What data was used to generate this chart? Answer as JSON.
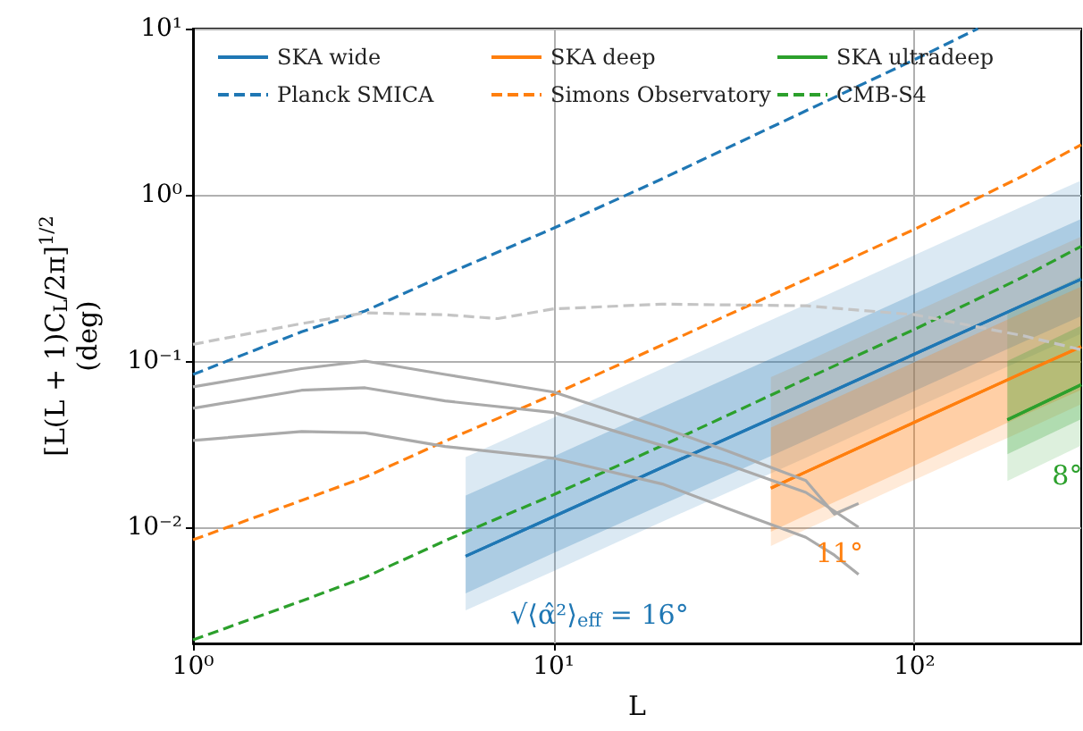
{
  "chart_data": {
    "type": "line",
    "xlabel": "L",
    "ylabel": "[L(L + 1)C$_{L}$/2π]$^{1/2}$\n(deg)",
    "log": "xy",
    "grid": true,
    "legend": "top",
    "xlim": [
      1,
      290
    ],
    "ylim": [
      0.002,
      10
    ],
    "xticks": [
      {
        "value": 1,
        "label": "10⁰"
      },
      {
        "value": 10,
        "label": "10¹"
      },
      {
        "value": 100,
        "label": "10²"
      }
    ],
    "yticks": [
      {
        "value": 0.01,
        "label": "10⁻²"
      },
      {
        "value": 0.1,
        "label": "10⁻¹"
      },
      {
        "value": 1,
        "label": "10⁰"
      },
      {
        "value": 10,
        "label": "10¹"
      }
    ],
    "series": [
      {
        "name": "SKA wide",
        "color": "#1f77b4",
        "line_style": "solid",
        "x": [
          5.7,
          10,
          20,
          50,
          100,
          200,
          290
        ],
        "values": [
          0.0067,
          0.0116,
          0.0229,
          0.0557,
          0.11,
          0.217,
          0.311
        ],
        "lower": [
          0.004,
          0.007,
          0.0137,
          0.0333,
          0.066,
          0.13,
          0.186
        ],
        "upper": [
          0.0155,
          0.0267,
          0.0527,
          0.128,
          0.253,
          0.5,
          0.715
        ]
      },
      {
        "name": "SKA deep",
        "color": "#ff7f0e",
        "line_style": "solid",
        "x": [
          40,
          50,
          100,
          200,
          290
        ],
        "values": [
          0.0172,
          0.0215,
          0.0428,
          0.085,
          0.122
        ],
        "lower": [
          0.0094,
          0.0118,
          0.0235,
          0.047,
          0.067
        ],
        "upper": [
          0.0398,
          0.0495,
          0.0985,
          0.196,
          0.28
        ]
      },
      {
        "name": "SKA ultradeep",
        "color": "#2ca02c",
        "line_style": "solid",
        "x": [
          181,
          290
        ],
        "values": [
          0.0443,
          0.072
        ],
        "lower": [
          0.0275,
          0.0447
        ],
        "upper": [
          0.1,
          0.163
        ]
      },
      {
        "name": "Planck SMICA",
        "color": "#1f77b4",
        "line_style": "dashed",
        "x": [
          1,
          2,
          3,
          5,
          10,
          20,
          50,
          100,
          150
        ],
        "values": [
          0.083,
          0.15,
          0.2,
          0.33,
          0.63,
          1.25,
          3.2,
          6.5,
          10
        ]
      },
      {
        "name": "Simons Observatory",
        "color": "#ff7f0e",
        "line_style": "dashed",
        "x": [
          1,
          2,
          3,
          5,
          10,
          20,
          50,
          100,
          200,
          290
        ],
        "values": [
          0.0084,
          0.0145,
          0.02,
          0.033,
          0.063,
          0.125,
          0.31,
          0.62,
          1.3,
          2.0
        ]
      },
      {
        "name": "CMB-S4",
        "color": "#2ca02c",
        "line_style": "dashed",
        "x": [
          1,
          2,
          3,
          5,
          10,
          20,
          50,
          100,
          200,
          290
        ],
        "values": [
          0.0021,
          0.0036,
          0.005,
          0.0083,
          0.0157,
          0.031,
          0.078,
          0.155,
          0.32,
          0.49
        ]
      },
      {
        "color": "#1f77b4",
        "line_style": "solid",
        "x": [
          5.7,
          10,
          20,
          50,
          100,
          200,
          290
        ],
        "values": [
          0.0067,
          0.0116,
          0.0229,
          0.0557,
          0.11,
          0.217,
          0.311
        ],
        "lower": [
          0.00316,
          0.00545,
          0.0108,
          0.0262,
          0.052,
          0.102,
          0.146
        ],
        "upper": [
          0.0264,
          0.0457,
          0.09,
          0.219,
          0.433,
          0.855,
          1.22
        ]
      },
      {
        "color": "#ff7f0e",
        "line_style": "solid",
        "x": [
          40,
          50,
          100,
          200,
          290
        ],
        "values": [
          0.0172,
          0.0215,
          0.0428,
          0.085,
          0.122
        ],
        "lower": [
          0.0077,
          0.0097,
          0.0193,
          0.038,
          0.055
        ],
        "upper": [
          0.08,
          0.099,
          0.197,
          0.39,
          0.56
        ]
      },
      {
        "color": "#2ca02c",
        "line_style": "solid",
        "x": [
          181,
          290
        ],
        "values": [
          0.0443,
          0.072
        ],
        "lower": [
          0.019,
          0.031
        ],
        "upper": [
          0.2,
          0.324
        ]
      },
      {
        "color": "#c4c4c4",
        "line_style": "dashed",
        "x": [
          1,
          2,
          3,
          5,
          7,
          10,
          20,
          50,
          100,
          200,
          290
        ],
        "values": [
          0.126,
          0.168,
          0.195,
          0.19,
          0.18,
          0.206,
          0.22,
          0.215,
          0.19,
          0.142,
          0.117
        ]
      },
      {
        "color": "#aaaaaa",
        "line_style": "solid",
        "x": [
          1,
          2,
          3,
          5,
          10,
          20,
          30,
          50,
          60,
          70
        ],
        "values": [
          0.07,
          0.09,
          0.1,
          0.083,
          0.065,
          0.0398,
          0.029,
          0.0191,
          0.012,
          0.0139
        ]
      },
      {
        "color": "#aaaaaa",
        "line_style": "solid",
        "x": [
          1,
          2,
          3,
          5,
          10,
          20,
          30,
          50,
          60,
          70
        ],
        "values": [
          0.052,
          0.0667,
          0.069,
          0.0575,
          0.049,
          0.031,
          0.024,
          0.0162,
          0.0125,
          0.01
        ]
      },
      {
        "color": "#aaaaaa",
        "line_style": "solid",
        "x": [
          1,
          2,
          3,
          5,
          10,
          20,
          30,
          50,
          60,
          70
        ],
        "values": [
          0.0333,
          0.0377,
          0.037,
          0.0306,
          0.026,
          0.0182,
          0.0131,
          0.0087,
          0.0068,
          0.0052
        ]
      }
    ],
    "annotations": [
      "√⟨α̂²⟩$_{eff}$ = 16°",
      "11°",
      "8°"
    ]
  }
}
